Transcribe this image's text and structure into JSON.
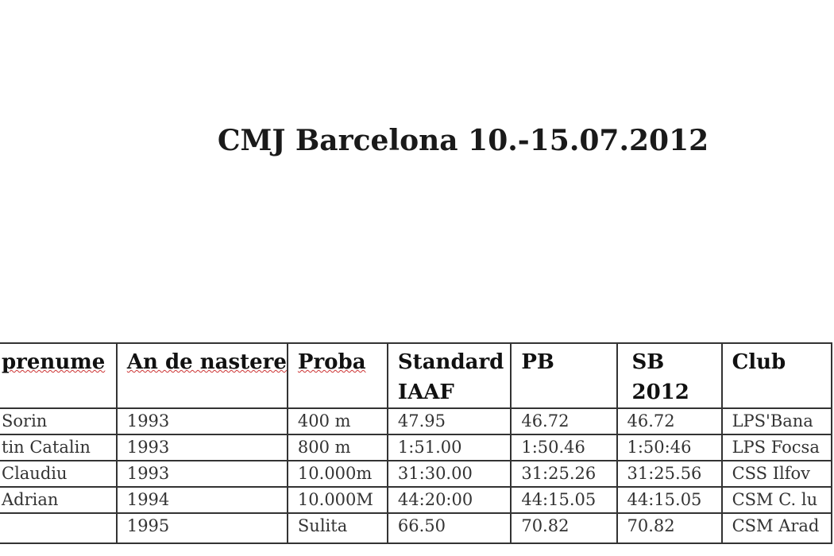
{
  "title": "CMJ Barcelona 10.-15.07.2012",
  "table": {
    "headers": [
      "prenume",
      "An de nastere",
      "Proba",
      "Standard IAAF",
      "PB",
      "SB 2012",
      "Club"
    ],
    "rows": [
      [
        "Sorin",
        "1993",
        "400 m",
        "47.95",
        "46.72",
        "46.72",
        "LPS'Bana"
      ],
      [
        "tin Catalin",
        "1993",
        "800 m",
        "1:51.00",
        "1:50.46",
        "1:50:46",
        "LPS Focsa"
      ],
      [
        "Claudiu",
        "1993",
        "10.000m",
        "31:30.00",
        "31:25.26",
        "31:25.56",
        "CSS Ilfov"
      ],
      [
        "Adrian",
        "1994",
        "10.000M",
        "44:20:00",
        "44:15.05",
        "44:15.05",
        "CSM C. lu"
      ],
      [
        "",
        "1995",
        "Sulita",
        "66.50",
        "70.82",
        "70.82",
        "CSM Arad"
      ]
    ]
  }
}
